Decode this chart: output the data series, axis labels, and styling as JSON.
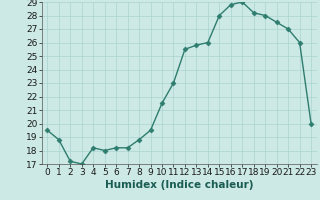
{
  "x": [
    0,
    1,
    2,
    3,
    4,
    5,
    6,
    7,
    8,
    9,
    10,
    11,
    12,
    13,
    14,
    15,
    16,
    17,
    18,
    19,
    20,
    21,
    22,
    23
  ],
  "y": [
    19.5,
    18.8,
    17.2,
    17.0,
    18.2,
    18.0,
    18.2,
    18.2,
    18.8,
    19.5,
    21.5,
    23.0,
    25.5,
    25.8,
    26.0,
    28.0,
    28.8,
    29.0,
    28.2,
    28.0,
    27.5,
    27.0,
    26.0,
    20.0
  ],
  "line_color": "#2e7d6e",
  "marker": "D",
  "marker_size": 2.5,
  "bg_color": "#cce9e5",
  "grid_color": "#aad4cf",
  "xlabel": "Humidex (Indice chaleur)",
  "ylim": [
    17,
    29
  ],
  "xlim": [
    -0.5,
    23.5
  ],
  "yticks": [
    17,
    18,
    19,
    20,
    21,
    22,
    23,
    24,
    25,
    26,
    27,
    28,
    29
  ],
  "xticks": [
    0,
    1,
    2,
    3,
    4,
    5,
    6,
    7,
    8,
    9,
    10,
    11,
    12,
    13,
    14,
    15,
    16,
    17,
    18,
    19,
    20,
    21,
    22,
    23
  ],
  "label_fontsize": 7.5,
  "tick_fontsize": 6.5
}
